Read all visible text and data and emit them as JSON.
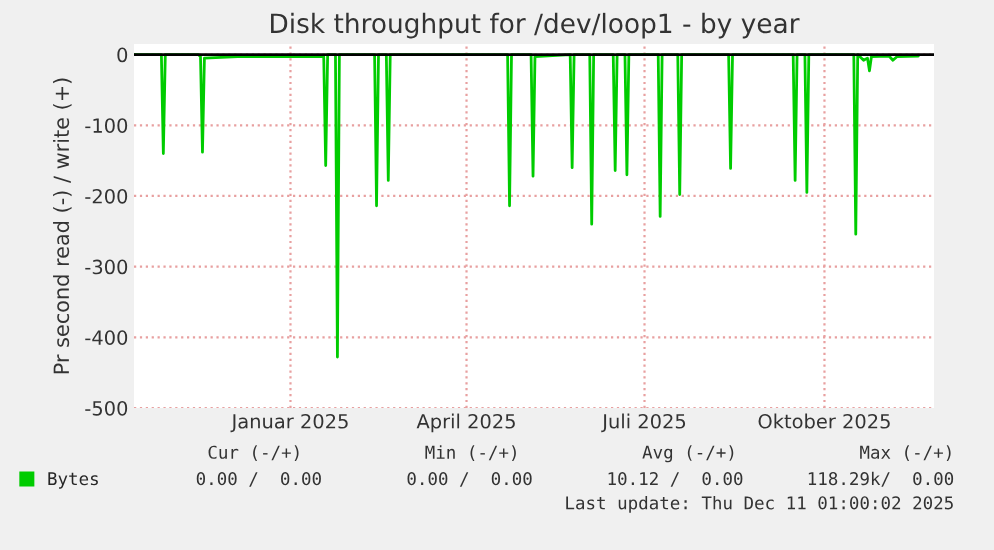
{
  "chart_data": {
    "type": "line",
    "title": "Disk throughput for /dev/loop1 - by year",
    "ylabel": "Pr second read (-) / write (+)",
    "x": [
      "2024-10-28",
      "2024-11-11",
      "2024-11-12",
      "2024-11-13",
      "2024-11-30",
      "2024-12-01",
      "2024-12-02",
      "2024-12-03",
      "2024-12-20",
      "2025-01-20",
      "2025-02-02",
      "2025-02-03",
      "2025-02-04",
      "2025-02-08",
      "2025-02-09",
      "2025-02-10",
      "2025-02-28",
      "2025-03-01",
      "2025-03-02",
      "2025-03-06",
      "2025-03-07",
      "2025-03-08",
      "2025-04-10",
      "2025-05-07",
      "2025-05-08",
      "2025-05-09",
      "2025-05-19",
      "2025-05-20",
      "2025-05-21",
      "2025-06-08",
      "2025-06-09",
      "2025-06-10",
      "2025-06-18",
      "2025-06-19",
      "2025-06-20",
      "2025-06-30",
      "2025-07-01",
      "2025-07-02",
      "2025-07-06",
      "2025-07-07",
      "2025-07-08",
      "2025-07-23",
      "2025-07-24",
      "2025-07-25",
      "2025-08-02",
      "2025-08-03",
      "2025-08-04",
      "2025-08-28",
      "2025-08-29",
      "2025-08-30",
      "2025-09-15",
      "2025-09-30",
      "2025-10-01",
      "2025-10-02",
      "2025-10-06",
      "2025-10-07",
      "2025-10-08",
      "2025-10-31",
      "2025-11-01",
      "2025-11-02",
      "2025-11-05",
      "2025-11-07",
      "2025-11-08",
      "2025-11-09",
      "2025-11-18",
      "2025-11-20",
      "2025-11-22",
      "2025-12-03"
    ],
    "series": [
      {
        "name": "Bytes",
        "color": "#00cc00",
        "values": [
          0,
          0,
          -140,
          0,
          0,
          -3,
          -138,
          -5,
          -3,
          -3,
          -3,
          -157,
          0,
          0,
          -428,
          0,
          0,
          -214,
          0,
          0,
          -178,
          0,
          0,
          0,
          -214,
          0,
          0,
          -172,
          -3,
          0,
          -160,
          0,
          0,
          -240,
          0,
          0,
          -164,
          0,
          0,
          -170,
          0,
          0,
          -229,
          0,
          0,
          -198,
          0,
          0,
          -161,
          0,
          0,
          0,
          -178,
          0,
          0,
          -195,
          0,
          0,
          -254,
          0,
          -8,
          -5,
          -23,
          -3,
          -2,
          -8,
          -3,
          -2
        ]
      }
    ],
    "xlim": [
      "2024-10-28",
      "2025-12-11"
    ],
    "xticks": [
      {
        "value": "2025-01-16",
        "label": "Januar 2025"
      },
      {
        "value": "2025-04-16",
        "label": "April 2025"
      },
      {
        "value": "2025-07-16",
        "label": "Juli 2025"
      },
      {
        "value": "2025-10-16",
        "label": "Oktober 2025"
      }
    ],
    "ylim": [
      -500,
      15
    ],
    "yticks": [
      -500,
      -400,
      -300,
      -200,
      -100,
      0
    ],
    "ref_lines": [
      {
        "axis": "y",
        "value": 0,
        "color": "#000000"
      }
    ],
    "grid": true,
    "legend": "bottom left",
    "annotations": [
      "Cur (-/+)",
      "Min (-/+)",
      "Avg (-/+)",
      "Max (-/+)",
      "0.00 /  0.00",
      "0.00 /  0.00",
      "10.12 /  0.00",
      "118.29k/  0.00",
      "Last update: Thu Dec 11 01:00:02 2025"
    ]
  }
}
